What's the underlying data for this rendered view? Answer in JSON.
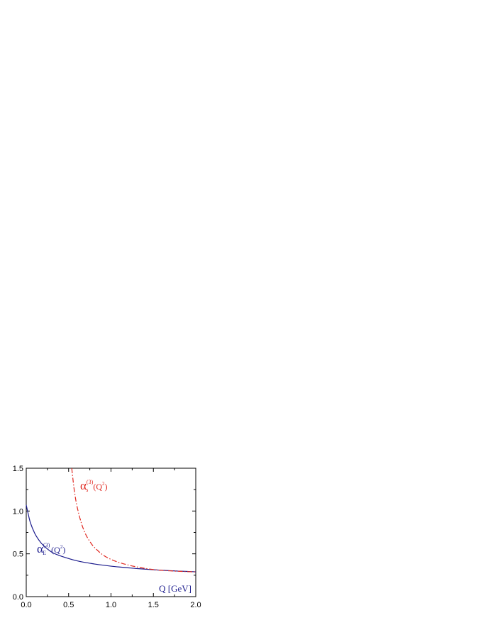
{
  "chart_data": {
    "type": "line",
    "title": "",
    "xlabel": "Q [GeV]",
    "ylabel": "",
    "xlim": [
      0.0,
      2.0
    ],
    "ylim": [
      0.0,
      1.5
    ],
    "x_ticks": [
      "0.0",
      "0.5",
      "1.0",
      "1.5",
      "2.0"
    ],
    "y_ticks": [
      "0.0",
      "0.5",
      "1.0",
      "1.5"
    ],
    "grid": false,
    "series": [
      {
        "name": "αE(3)(Q2)",
        "label_main": "α",
        "label_sub": "E",
        "label_sup": "(3)",
        "label_arg": "(Q",
        "label_arg_sup": "2",
        "label_close": ")",
        "color": "#1a1a8c",
        "style": "solid",
        "x": [
          0.0,
          0.02,
          0.05,
          0.1,
          0.15,
          0.2,
          0.3,
          0.4,
          0.5,
          0.6,
          0.7,
          0.8,
          0.9,
          1.0,
          1.1,
          1.2,
          1.3,
          1.4,
          1.5,
          1.6,
          1.7,
          1.8,
          1.9,
          2.0
        ],
        "y": [
          1.07,
          0.98,
          0.86,
          0.74,
          0.66,
          0.6,
          0.52,
          0.477,
          0.445,
          0.418,
          0.398,
          0.382,
          0.368,
          0.356,
          0.346,
          0.337,
          0.328,
          0.321,
          0.314,
          0.308,
          0.303,
          0.298,
          0.294,
          0.29
        ]
      },
      {
        "name": "αs(3)(Q2)",
        "label_main": "α",
        "label_sub": "s",
        "label_sup": "(3)",
        "label_arg": "(Q",
        "label_arg_sup": "2",
        "label_close": ")",
        "color": "#e0261e",
        "style": "dashdot",
        "x": [
          0.537,
          0.55,
          0.57,
          0.6,
          0.65,
          0.7,
          0.75,
          0.8,
          0.9,
          1.0,
          1.1,
          1.2,
          1.3,
          1.4,
          1.5,
          1.6,
          1.7,
          1.8,
          1.9,
          2.0
        ],
        "y": [
          1.5,
          1.38,
          1.22,
          1.05,
          0.86,
          0.73,
          0.645,
          0.58,
          0.49,
          0.435,
          0.398,
          0.37,
          0.348,
          0.33,
          0.316,
          0.307,
          0.301,
          0.296,
          0.292,
          0.289
        ]
      }
    ]
  }
}
